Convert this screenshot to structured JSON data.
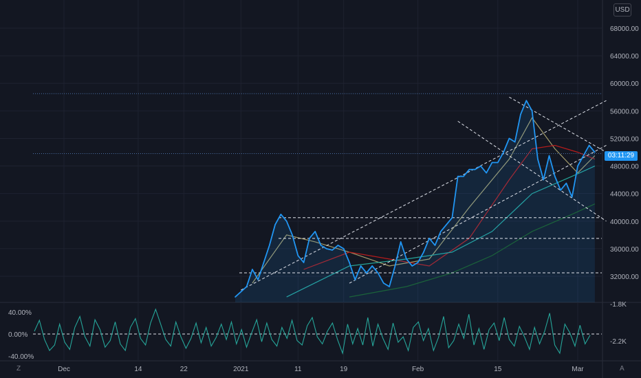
{
  "currency": "USD",
  "countdown": "03:11:29",
  "scale_buttons": {
    "left": "Z",
    "right": "A"
  },
  "colors": {
    "background": "#131722",
    "price_line": "#2196f3",
    "oscillator": "#26a69a",
    "ma_fast": "#a39c6b",
    "ma_mid": "#b71c1c",
    "ma_slow": "#26a69a",
    "ma_long": "#1b5e20",
    "trendline": "#e0e3eb",
    "level_line": "#2962ff"
  },
  "chart_data": [
    {
      "type": "line",
      "title": "",
      "x_ticks": [
        "Dec",
        "14",
        "22",
        "2021",
        "11",
        "19",
        "Feb",
        "15",
        "Mar"
      ],
      "y_ticks": [
        "68000.00",
        "64000.00",
        "60000.00",
        "56000.00",
        "52000.00",
        "48000.00",
        "44000.00",
        "40000.00",
        "36000.00",
        "32000.00"
      ],
      "ylim": [
        29000,
        72000
      ],
      "series": [
        {
          "x": [
            "2020-12-31",
            "2021-01-02",
            "2021-01-03",
            "2021-01-04",
            "2021-01-05",
            "2021-01-06",
            "2021-01-07",
            "2021-01-08",
            "2021-01-09",
            "2021-01-10",
            "2021-01-11",
            "2021-01-12",
            "2021-01-13",
            "2021-01-14",
            "2021-01-15",
            "2021-01-16",
            "2021-01-17",
            "2021-01-18",
            "2021-01-19",
            "2021-01-20",
            "2021-01-21",
            "2021-01-22",
            "2021-01-23",
            "2021-01-24",
            "2021-01-25",
            "2021-01-26",
            "2021-01-27",
            "2021-01-28",
            "2021-01-29",
            "2021-01-30",
            "2021-01-31",
            "2021-02-01",
            "2021-02-02",
            "2021-02-03",
            "2021-02-04",
            "2021-02-05",
            "2021-02-06",
            "2021-02-07",
            "2021-02-08",
            "2021-02-09",
            "2021-02-10",
            "2021-02-11",
            "2021-02-12",
            "2021-02-13",
            "2021-02-14",
            "2021-02-15",
            "2021-02-16",
            "2021-02-17",
            "2021-02-18",
            "2021-02-19",
            "2021-02-20",
            "2021-02-21",
            "2021-02-22",
            "2021-02-23",
            "2021-02-24",
            "2021-02-25",
            "2021-02-26",
            "2021-02-27",
            "2021-02-28",
            "2021-03-01",
            "2021-03-02",
            "2021-03-03",
            "2021-03-04"
          ],
          "values": [
            29000,
            30500,
            33000,
            31500,
            34000,
            36500,
            39500,
            41000,
            40000,
            38000,
            35000,
            34000,
            37500,
            38500,
            36500,
            36000,
            35800,
            36500,
            36000,
            34000,
            31500,
            33500,
            32500,
            33500,
            32500,
            31000,
            30500,
            33500,
            37000,
            34500,
            33500,
            34000,
            35500,
            37500,
            36500,
            38500,
            39500,
            40500,
            46500,
            46500,
            47500,
            47500,
            48000,
            47000,
            48500,
            48500,
            50000,
            52000,
            51500,
            55500,
            57500,
            56000,
            49000,
            46000,
            49500,
            46500,
            44500,
            45500,
            43500,
            48000,
            49500,
            51000,
            50000
          ]
        }
      ],
      "moving_averages_approx": {
        "ma_fast": {
          "x": [
            "2021-01-03",
            "2021-01-09",
            "2021-01-14",
            "2021-01-20",
            "2021-01-27",
            "2021-02-03",
            "2021-02-10",
            "2021-02-17",
            "2021-02-21",
            "2021-02-25",
            "2021-03-01",
            "2021-03-04"
          ],
          "values": [
            31000,
            38000,
            37000,
            35500,
            33500,
            34500,
            42000,
            49000,
            55000,
            50500,
            47000,
            49500
          ]
        },
        "ma_mid": {
          "x": [
            "2021-01-12",
            "2021-01-20",
            "2021-01-27",
            "2021-02-03",
            "2021-02-10",
            "2021-02-17",
            "2021-02-21",
            "2021-02-25",
            "2021-03-01",
            "2021-03-04"
          ],
          "values": [
            33000,
            35500,
            34500,
            33500,
            37500,
            46000,
            50500,
            51000,
            50000,
            49000
          ]
        },
        "ma_slow": {
          "x": [
            "2021-01-09",
            "2021-01-20",
            "2021-01-30",
            "2021-02-07",
            "2021-02-14",
            "2021-02-21",
            "2021-02-28",
            "2021-03-04"
          ],
          "values": [
            29000,
            33500,
            34500,
            35500,
            38500,
            44000,
            46500,
            48000
          ]
        },
        "ma_long": {
          "x": [
            "2021-01-20",
            "2021-01-30",
            "2021-02-07",
            "2021-02-14",
            "2021-02-21",
            "2021-02-28",
            "2021-03-04"
          ],
          "values": [
            29000,
            30500,
            32500,
            35000,
            38500,
            41000,
            42500
          ]
        }
      },
      "horizontal_levels": [
        58500,
        49800,
        40500,
        37500,
        32500
      ],
      "trendlines": [
        {
          "from": [
            "2021-01-01",
            30000
          ],
          "to": [
            "2021-03-06",
            57500
          ]
        },
        {
          "from": [
            "2021-01-20",
            31000
          ],
          "to": [
            "2021-03-06",
            51000
          ]
        },
        {
          "from": [
            "2021-02-08",
            54500
          ],
          "to": [
            "2021-03-06",
            40000
          ]
        },
        {
          "from": [
            "2021-02-17",
            58000
          ],
          "to": [
            "2021-03-06",
            50000
          ]
        }
      ]
    },
    {
      "type": "line",
      "title": "",
      "y_ticks": [
        "40.00%",
        "0.00%",
        "-40.00%"
      ],
      "right_ticks": [
        "-1.8K",
        "-2.2K"
      ],
      "ylim": [
        -45,
        45
      ],
      "series": [
        {
          "values": [
            5,
            25,
            -10,
            -30,
            -20,
            18,
            -15,
            -28,
            12,
            32,
            -5,
            -22,
            26,
            8,
            -24,
            -12,
            22,
            -18,
            -30,
            12,
            28,
            -8,
            -20,
            20,
            45,
            18,
            -10,
            -22,
            22,
            -5,
            -26,
            -8,
            20,
            -16,
            12,
            -22,
            -6,
            18,
            -10,
            22,
            -18,
            8,
            -24,
            2,
            26,
            -14,
            20,
            -10,
            -22,
            12,
            -8,
            25,
            -12,
            -20,
            15,
            30,
            -5,
            -18,
            5,
            20,
            -10,
            -35,
            18,
            -18,
            10,
            -20,
            30,
            -22,
            18,
            -8,
            -28,
            20,
            -15,
            -5,
            -30,
            12,
            22,
            -12,
            10,
            -30,
            -6,
            32,
            -25,
            -12,
            18,
            -8,
            36,
            -20,
            10,
            -28,
            8,
            20,
            -12,
            30,
            -10,
            -22,
            14,
            -5,
            -28,
            12,
            -18,
            5,
            38,
            -20,
            -35,
            18,
            2,
            -22,
            16,
            -18,
            -2
          ]
        }
      ],
      "zero_line": 0
    }
  ]
}
